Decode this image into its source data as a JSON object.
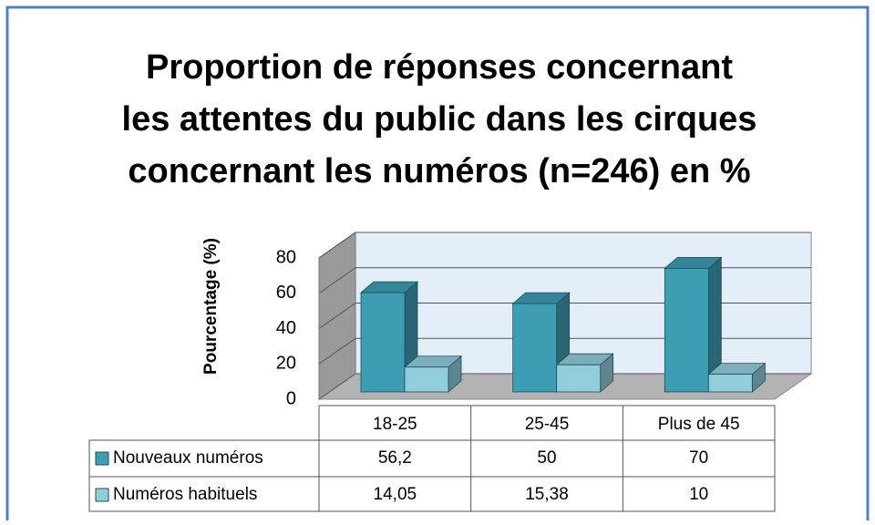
{
  "chart_data": {
    "type": "bar3d",
    "title": [
      "Proportion de réponses concernant",
      "les attentes du public dans les cirques",
      "concernant les numéros (n=246) en %"
    ],
    "ylabel": "Pourcentage (%)",
    "categories": [
      "18-25",
      "25-45",
      "Plus de 45"
    ],
    "series": [
      {
        "name": "Nouveaux numéros",
        "color": "#3d9db2",
        "values": [
          56.2,
          50,
          70
        ],
        "value_labels": [
          "56,2",
          "50",
          "70"
        ]
      },
      {
        "name": "Numéros habituels",
        "color": "#92cddc",
        "values": [
          14.05,
          15.38,
          10
        ],
        "value_labels": [
          "14,05",
          "15,38",
          "10"
        ]
      }
    ],
    "ylim": [
      0,
      80
    ],
    "yticks": [
      0,
      20,
      40,
      60,
      80
    ],
    "grid": true
  }
}
